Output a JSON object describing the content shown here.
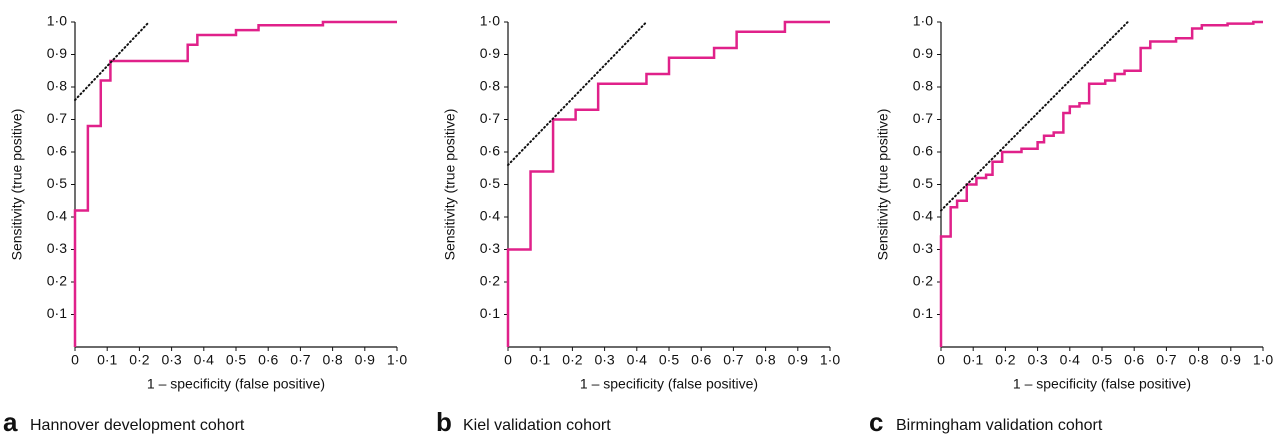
{
  "chart_data": [
    {
      "type": "line",
      "panel_label": "a",
      "title": "Hannover development cohort",
      "xlabel": "1 – specificity (false positive)",
      "ylabel": "Sensitivity (true positive)",
      "xlim": [
        0,
        1
      ],
      "ylim": [
        0,
        1
      ],
      "xticks": [
        0,
        {
          "value": 0.1,
          "label": "0·1"
        },
        {
          "value": 0.2,
          "label": "0·2"
        },
        {
          "value": 0.3,
          "label": "0·3"
        },
        {
          "value": 0.4,
          "label": "0·4"
        },
        {
          "value": 0.5,
          "label": "0·5"
        },
        {
          "value": 0.6,
          "label": "0·6"
        },
        {
          "value": 0.7,
          "label": "0·7"
        },
        {
          "value": 0.8,
          "label": "0·8"
        },
        {
          "value": 0.9,
          "label": "0·9"
        },
        {
          "value": 1,
          "label": "1·0"
        }
      ],
      "yticks": [
        {
          "value": 0.1,
          "label": "0·1"
        },
        {
          "value": 0.2,
          "label": "0·2"
        },
        {
          "value": 0.3,
          "label": "0·3"
        },
        {
          "value": 0.4,
          "label": "0·4"
        },
        {
          "value": 0.5,
          "label": "0·5"
        },
        {
          "value": 0.6,
          "label": "0·6"
        },
        {
          "value": 0.7,
          "label": "0·7"
        },
        {
          "value": 0.8,
          "label": "0·8"
        },
        {
          "value": 0.9,
          "label": "0·9"
        },
        {
          "value": 1,
          "label": "1·0"
        }
      ],
      "series": [
        {
          "color": "#e0218a",
          "style": "solid",
          "x": [
            0,
            0,
            0.04,
            0.04,
            0.08,
            0.08,
            0.11,
            0.11,
            0.35,
            0.35,
            0.38,
            0.38,
            0.5,
            0.5,
            0.57,
            0.57,
            0.77,
            0.77,
            1
          ],
          "values": [
            0,
            0.42,
            0.42,
            0.68,
            0.68,
            0.82,
            0.82,
            0.88,
            0.88,
            0.93,
            0.93,
            0.96,
            0.96,
            0.975,
            0.975,
            0.99,
            0.99,
            1,
            1
          ]
        },
        {
          "color": "#111111",
          "style": "dotted",
          "x": [
            0,
            0.23
          ],
          "values": [
            0.76,
            1
          ]
        }
      ]
    },
    {
      "type": "line",
      "panel_label": "b",
      "title": "Kiel validation cohort",
      "xlabel": "1 – specificity (false positive)",
      "ylabel": "Sensitivity (true positive)",
      "xlim": [
        0,
        1
      ],
      "ylim": [
        0,
        1
      ],
      "xticks": [
        0,
        {
          "value": 0.1,
          "label": "0·1"
        },
        {
          "value": 0.2,
          "label": "0·2"
        },
        {
          "value": 0.3,
          "label": "0·3"
        },
        {
          "value": 0.4,
          "label": "0·4"
        },
        {
          "value": 0.5,
          "label": "0·5"
        },
        {
          "value": 0.6,
          "label": "0·6"
        },
        {
          "value": 0.7,
          "label": "0·7"
        },
        {
          "value": 0.8,
          "label": "0·8"
        },
        {
          "value": 0.9,
          "label": "0·9"
        },
        {
          "value": 1,
          "label": "1·0"
        }
      ],
      "yticks": [
        {
          "value": 0.1,
          "label": "0·1"
        },
        {
          "value": 0.2,
          "label": "0·2"
        },
        {
          "value": 0.3,
          "label": "0·3"
        },
        {
          "value": 0.4,
          "label": "0·4"
        },
        {
          "value": 0.5,
          "label": "0·5"
        },
        {
          "value": 0.6,
          "label": "0·6"
        },
        {
          "value": 0.7,
          "label": "0·7"
        },
        {
          "value": 0.8,
          "label": "0·8"
        },
        {
          "value": 0.9,
          "label": "0·9"
        },
        {
          "value": 1,
          "label": "1·0"
        }
      ],
      "series": [
        {
          "color": "#e0218a",
          "style": "solid",
          "x": [
            0,
            0,
            0.07,
            0.07,
            0.14,
            0.14,
            0.21,
            0.21,
            0.28,
            0.28,
            0.43,
            0.43,
            0.5,
            0.5,
            0.64,
            0.64,
            0.71,
            0.71,
            0.86,
            0.86,
            1
          ],
          "values": [
            0,
            0.3,
            0.3,
            0.54,
            0.54,
            0.7,
            0.7,
            0.73,
            0.73,
            0.81,
            0.81,
            0.84,
            0.84,
            0.89,
            0.89,
            0.92,
            0.92,
            0.97,
            0.97,
            1,
            1
          ]
        },
        {
          "color": "#111111",
          "style": "dotted",
          "x": [
            0,
            0.43
          ],
          "values": [
            0.56,
            1
          ]
        }
      ]
    },
    {
      "type": "line",
      "panel_label": "c",
      "title": "Birmingham validation cohort",
      "xlabel": "1 – specificity (false positive)",
      "ylabel": "Sensitivity (true positive)",
      "xlim": [
        0,
        1
      ],
      "ylim": [
        0,
        1
      ],
      "xticks": [
        0,
        {
          "value": 0.1,
          "label": "0·1"
        },
        {
          "value": 0.2,
          "label": "0·2"
        },
        {
          "value": 0.3,
          "label": "0·3"
        },
        {
          "value": 0.4,
          "label": "0·4"
        },
        {
          "value": 0.5,
          "label": "0·5"
        },
        {
          "value": 0.6,
          "label": "0·6"
        },
        {
          "value": 0.7,
          "label": "0·7"
        },
        {
          "value": 0.8,
          "label": "0·8"
        },
        {
          "value": 0.9,
          "label": "0·9"
        },
        {
          "value": 1,
          "label": "1·0"
        }
      ],
      "yticks": [
        {
          "value": 0.1,
          "label": "0·1"
        },
        {
          "value": 0.2,
          "label": "0·2"
        },
        {
          "value": 0.3,
          "label": "0·3"
        },
        {
          "value": 0.4,
          "label": "0·4"
        },
        {
          "value": 0.5,
          "label": "0·5"
        },
        {
          "value": 0.6,
          "label": "0·6"
        },
        {
          "value": 0.7,
          "label": "0·7"
        },
        {
          "value": 0.8,
          "label": "0·8"
        },
        {
          "value": 0.9,
          "label": "0·9"
        },
        {
          "value": 1,
          "label": "1·0"
        }
      ],
      "series": [
        {
          "color": "#e0218a",
          "style": "solid",
          "x": [
            0,
            0,
            0.03,
            0.03,
            0.05,
            0.05,
            0.08,
            0.08,
            0.11,
            0.11,
            0.14,
            0.14,
            0.16,
            0.16,
            0.19,
            0.19,
            0.25,
            0.25,
            0.3,
            0.3,
            0.32,
            0.32,
            0.35,
            0.35,
            0.38,
            0.38,
            0.4,
            0.4,
            0.43,
            0.43,
            0.46,
            0.46,
            0.51,
            0.51,
            0.54,
            0.54,
            0.57,
            0.57,
            0.62,
            0.62,
            0.65,
            0.65,
            0.73,
            0.73,
            0.78,
            0.78,
            0.81,
            0.81,
            0.89,
            0.89,
            0.97,
            0.97,
            1
          ],
          "values": [
            0,
            0.34,
            0.34,
            0.43,
            0.43,
            0.45,
            0.45,
            0.5,
            0.5,
            0.52,
            0.52,
            0.53,
            0.53,
            0.57,
            0.57,
            0.6,
            0.6,
            0.61,
            0.61,
            0.63,
            0.63,
            0.65,
            0.65,
            0.66,
            0.66,
            0.72,
            0.72,
            0.74,
            0.74,
            0.75,
            0.75,
            0.81,
            0.81,
            0.82,
            0.82,
            0.84,
            0.84,
            0.85,
            0.85,
            0.92,
            0.92,
            0.94,
            0.94,
            0.95,
            0.95,
            0.98,
            0.98,
            0.99,
            0.99,
            0.995,
            0.995,
            1,
            1
          ]
        },
        {
          "color": "#111111",
          "style": "dotted",
          "x": [
            0,
            0.58
          ],
          "values": [
            0.42,
            1
          ]
        }
      ]
    }
  ]
}
